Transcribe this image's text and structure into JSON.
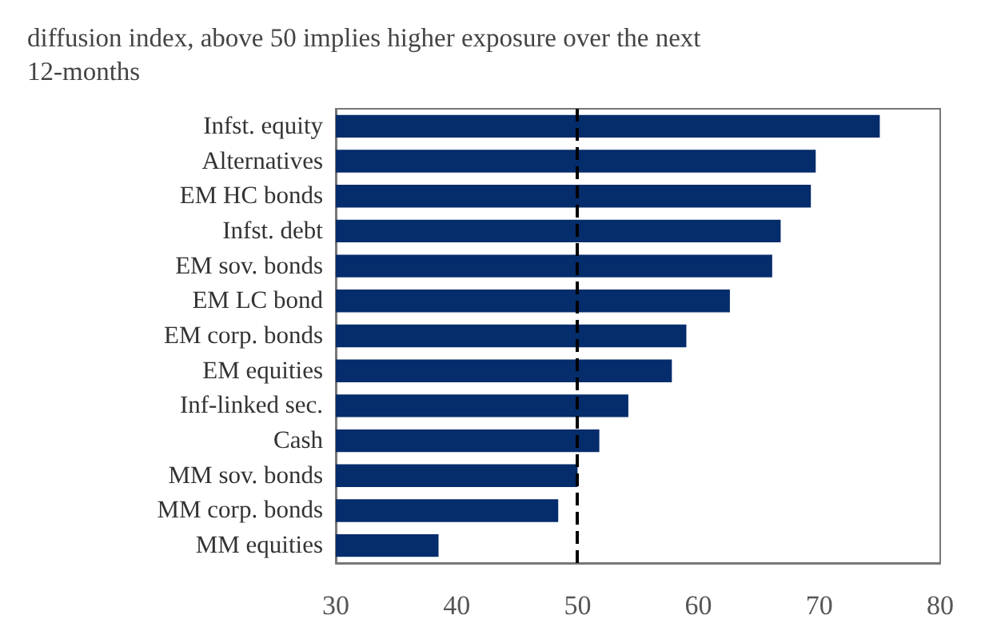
{
  "chart_data": {
    "type": "bar",
    "orientation": "horizontal",
    "title": "diffusion index, above 50 implies higher exposure over the next\n12-months",
    "categories": [
      "Infst. equity",
      "Alternatives",
      "EM HC bonds",
      "Infst. debt",
      "EM sov. bonds",
      "EM LC bond",
      "EM corp. bonds",
      "EM equities",
      "Inf-linked sec.",
      "Cash",
      "MM sov. bonds",
      "MM corp. bonds",
      "MM equities"
    ],
    "values": [
      75.0,
      69.7,
      69.3,
      66.8,
      66.1,
      62.6,
      59.0,
      57.8,
      54.2,
      51.8,
      50.0,
      48.4,
      38.5
    ],
    "color": "#052c6b",
    "xlim": [
      30,
      80
    ],
    "xticks": [
      30,
      40,
      50,
      60,
      70,
      80
    ],
    "grid": false,
    "ref_lines": [
      {
        "axis": "x",
        "value": 50,
        "color": "#000000",
        "line_style": "dashed"
      }
    ]
  }
}
